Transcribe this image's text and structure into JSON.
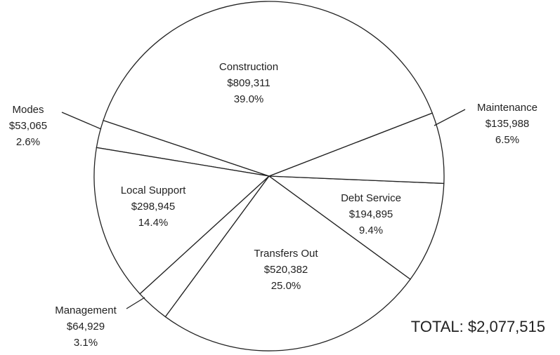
{
  "chart_data": {
    "type": "pie",
    "categories": [
      "Construction",
      "Maintenance",
      "Debt Service",
      "Transfers Out",
      "Management",
      "Local Support",
      "Modes"
    ],
    "values": [
      809311,
      135988,
      194895,
      520382,
      64929,
      298945,
      53065
    ],
    "value_labels": [
      "$809,311",
      "$135,988",
      "$194,895",
      "$520,382",
      "$64,929",
      "$298,945",
      "$53,065"
    ],
    "percents": [
      39.0,
      6.5,
      9.4,
      25.0,
      3.1,
      14.4,
      2.6
    ],
    "percent_labels": [
      "39.0%",
      "6.5%",
      "9.4%",
      "25.0%",
      "3.1%",
      "14.4%",
      "2.6%"
    ],
    "total_label": "TOTAL: $2,077,515",
    "color": "#ffffff"
  }
}
